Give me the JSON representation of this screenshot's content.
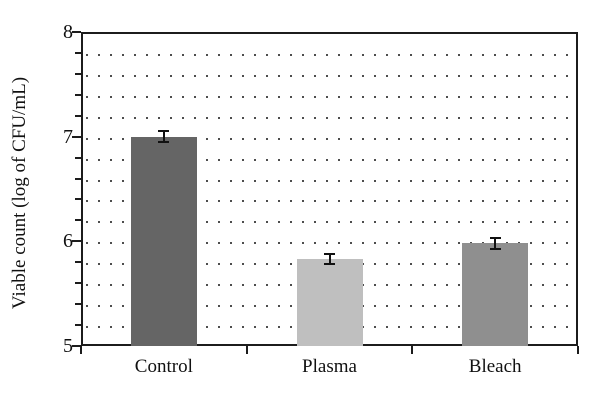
{
  "figure": {
    "title": "",
    "background_color": "#ffffff",
    "axis_color": "#1c1c1c",
    "grid_dot_color": "#4d4d4d",
    "text_color": "#111111",
    "error_bar_color": "#111111"
  },
  "chart_data": {
    "type": "bar",
    "categories": [
      "Control",
      "Plasma",
      "Bleach"
    ],
    "values": [
      7.0,
      5.83,
      5.98
    ],
    "errors": [
      0.05,
      0.05,
      0.05
    ],
    "bar_colors": [
      "#656565",
      "#bfbfbf",
      "#8f8f8f"
    ],
    "title": "",
    "xlabel": "",
    "ylabel": "Viable count (log of CFU/mL)",
    "ylim": [
      5,
      8
    ],
    "ytick_labels": [
      "8",
      "7",
      "6",
      "5"
    ],
    "ytick_values": [
      8,
      7,
      6,
      5
    ],
    "ytick_minor_step": 0.2,
    "grid": {
      "axis": "y",
      "style": "dotted",
      "interval": 0.2
    },
    "legend_position": "none"
  }
}
